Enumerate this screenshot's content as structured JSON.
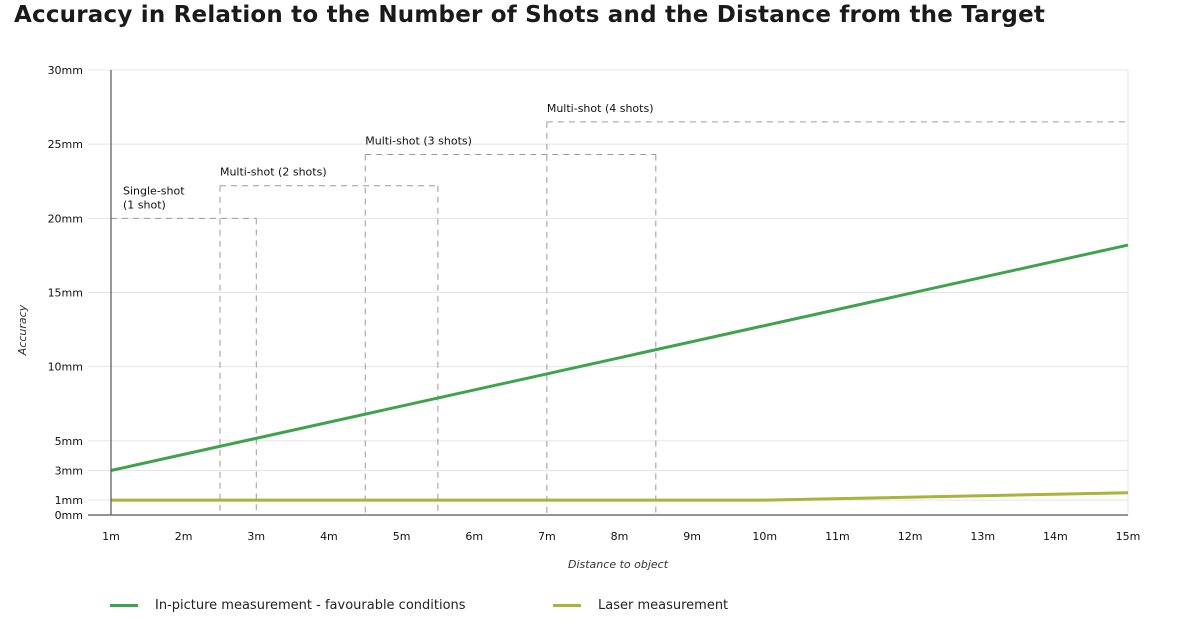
{
  "title": "Accuracy in Relation to the Number of Shots and the Distance from the Target",
  "chart_data": {
    "type": "line",
    "title": "Accuracy in Relation to the Number of Shots and the Distance from the Target",
    "xlabel": "Distance to object",
    "ylabel": "Accuracy",
    "x": [
      1,
      2,
      3,
      4,
      5,
      6,
      7,
      8,
      9,
      10,
      11,
      12,
      13,
      14,
      15
    ],
    "x_tick_labels": [
      "1m",
      "2m",
      "3m",
      "4m",
      "5m",
      "6m",
      "7m",
      "8m",
      "9m",
      "10m",
      "11m",
      "12m",
      "13m",
      "14m",
      "15m"
    ],
    "xlim": [
      1,
      15
    ],
    "y_ticks": [
      0,
      1,
      3,
      5,
      10,
      15,
      20,
      25,
      30
    ],
    "y_tick_labels": [
      "0mm",
      "1mm",
      "3mm",
      "5mm",
      "10mm",
      "15mm",
      "20mm",
      "25mm",
      "30mm"
    ],
    "ylim": [
      0,
      30
    ],
    "grid": "horizontal",
    "legend_position": "bottom",
    "series": [
      {
        "name": "In-picture measurement - favourable conditions",
        "color": "#3fa34d",
        "x": [
          1,
          15
        ],
        "values": [
          3.0,
          18.2
        ]
      },
      {
        "name": "Laser measurement",
        "color": "#a8b43a",
        "x": [
          1,
          10,
          15
        ],
        "values": [
          1.0,
          1.0,
          1.5
        ]
      }
    ],
    "zones": [
      {
        "label_lines": [
          "Single-shot",
          "(1 shot)"
        ],
        "x_start": 1.0,
        "x_end": 3.0,
        "x_inner": 2.5,
        "top": 20.0
      },
      {
        "label_lines": [
          "Multi-shot (2 shots)"
        ],
        "x_start": 2.5,
        "x_end": 5.5,
        "x_inner": 3.0,
        "top": 22.2
      },
      {
        "label_lines": [
          "Multi-shot (3 shots)"
        ],
        "x_start": 4.5,
        "x_end": 8.5,
        "x_inner": 5.5,
        "top": 24.3
      },
      {
        "label_lines": [
          "Multi-shot (4 shots)"
        ],
        "x_start": 7.0,
        "x_end": 15.0,
        "x_inner": 8.5,
        "top": 26.5
      }
    ]
  },
  "colors": {
    "grid": "#e4e4e4",
    "axis": "#555555",
    "dash": "#9a9a9a"
  }
}
